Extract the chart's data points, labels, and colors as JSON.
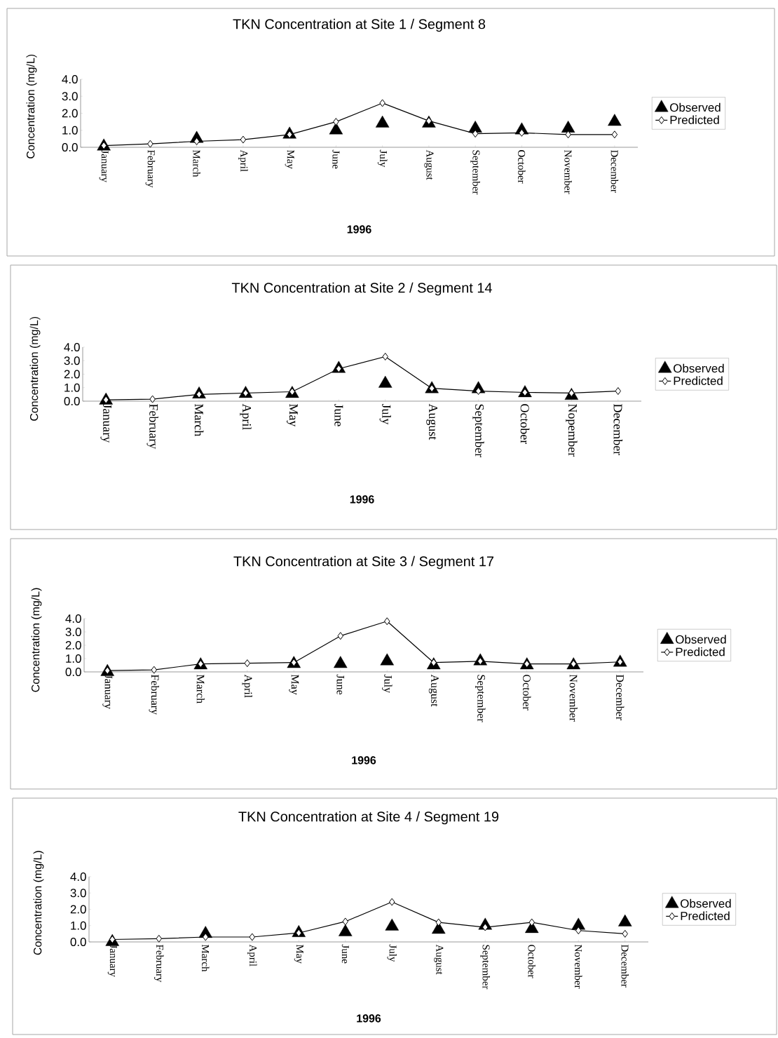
{
  "chart_data": [
    {
      "type": "line",
      "title": "TKN Concentration at Site 1 / Segment 8",
      "xlabel": "1996",
      "ylabel": "Concentration (mg/L)",
      "categories": [
        "January",
        "February",
        "March",
        "April",
        "May",
        "June",
        "July",
        "August",
        "September",
        "October",
        "November",
        "December"
      ],
      "ylim": [
        0,
        4
      ],
      "yticks": [
        {
          "value": 0,
          "label": "0.0"
        },
        {
          "value": 1,
          "label": "1.0"
        },
        {
          "value": 2,
          "label": "2.0"
        },
        {
          "value": 3,
          "label": "3.0"
        },
        {
          "value": 4,
          "label": "4.0"
        }
      ],
      "legend": "right",
      "series": [
        {
          "name": "Observed",
          "type": "scatter",
          "marker": "triangle",
          "color": "#000000",
          "values": [
            0.05,
            null,
            0.5,
            null,
            0.75,
            1.0,
            1.4,
            1.4,
            1.1,
            1.0,
            1.1,
            1.5
          ]
        },
        {
          "name": "Predicted",
          "type": "line",
          "marker": "diamond",
          "color": "#000000",
          "values": [
            0.1,
            0.2,
            0.35,
            0.45,
            0.75,
            1.5,
            2.6,
            1.55,
            0.8,
            0.85,
            0.75,
            0.75
          ]
        }
      ]
    },
    {
      "type": "line",
      "title": "TKN Concentration at Site 2 / Segment 14",
      "xlabel": "1996",
      "ylabel": "Concentration (mg/L)",
      "categories": [
        "January",
        "February",
        "March",
        "April",
        "May",
        "June",
        "July",
        "August",
        "September",
        "October",
        "Nopember",
        "December"
      ],
      "ylim": [
        0,
        4
      ],
      "yticks": [
        {
          "value": 0,
          "label": "0.0"
        },
        {
          "value": 1,
          "label": "1.0"
        },
        {
          "value": 2,
          "label": "2.0"
        },
        {
          "value": 3,
          "label": "3.0"
        },
        {
          "value": 4,
          "label": "4.0"
        }
      ],
      "legend": "right",
      "series": [
        {
          "name": "Observed",
          "type": "scatter",
          "marker": "triangle",
          "color": "#000000",
          "values": [
            0.05,
            null,
            0.5,
            0.55,
            0.55,
            2.4,
            1.3,
            0.9,
            0.9,
            0.6,
            0.4,
            null
          ]
        },
        {
          "name": "Predicted",
          "type": "line",
          "marker": "diamond",
          "color": "#000000",
          "values": [
            0.1,
            0.15,
            0.5,
            0.6,
            0.7,
            2.4,
            3.3,
            0.95,
            0.75,
            0.65,
            0.6,
            0.75
          ]
        }
      ]
    },
    {
      "type": "line",
      "title": "TKN Concentration at Site 3 / Segment 17",
      "xlabel": "1996",
      "ylabel": "Concentration (mg/L)",
      "categories": [
        "January",
        "February",
        "March",
        "April",
        "May",
        "June",
        "July",
        "August",
        "September",
        "October",
        "November",
        "December"
      ],
      "ylim": [
        0,
        4
      ],
      "yticks": [
        {
          "value": 0,
          "label": "0.0"
        },
        {
          "value": 1,
          "label": "1.0"
        },
        {
          "value": 2,
          "label": "2.0"
        },
        {
          "value": 3,
          "label": "3.0"
        },
        {
          "value": 4,
          "label": "4.0"
        }
      ],
      "legend": "right",
      "series": [
        {
          "name": "Observed",
          "type": "scatter",
          "marker": "triangle",
          "color": "#000000",
          "values": [
            0.0,
            null,
            0.5,
            null,
            0.6,
            0.6,
            0.8,
            0.5,
            0.8,
            0.5,
            0.5,
            0.7
          ]
        },
        {
          "name": "Predicted",
          "type": "line",
          "marker": "diamond",
          "color": "#000000",
          "values": [
            0.1,
            0.15,
            0.6,
            0.65,
            0.7,
            2.7,
            3.8,
            0.7,
            0.8,
            0.6,
            0.6,
            0.75
          ]
        }
      ]
    },
    {
      "type": "line",
      "title": "TKN Concentration at Site 4 / Segment 19",
      "xlabel": "1996",
      "ylabel": "Concentration (mg/L)",
      "categories": [
        "January",
        "February",
        "March",
        "April",
        "May",
        "June",
        "July",
        "August",
        "September",
        "October",
        "November",
        "December"
      ],
      "ylim": [
        0,
        4
      ],
      "yticks": [
        {
          "value": 0,
          "label": "0.0"
        },
        {
          "value": 1,
          "label": "1.0"
        },
        {
          "value": 2,
          "label": "2.0"
        },
        {
          "value": 3,
          "label": "3.0"
        },
        {
          "value": 4,
          "label": "4.0"
        }
      ],
      "legend": "right",
      "series": [
        {
          "name": "Observed",
          "type": "scatter",
          "marker": "triangle",
          "color": "#000000",
          "values": [
            0.0,
            null,
            0.5,
            null,
            0.55,
            0.6,
            0.95,
            0.75,
            1.0,
            0.8,
            1.0,
            1.2
          ]
        },
        {
          "name": "Predicted",
          "type": "line",
          "marker": "diamond",
          "color": "#000000",
          "values": [
            0.15,
            0.2,
            0.3,
            0.3,
            0.55,
            1.25,
            2.45,
            1.2,
            0.9,
            1.2,
            0.7,
            0.5
          ]
        }
      ]
    }
  ]
}
